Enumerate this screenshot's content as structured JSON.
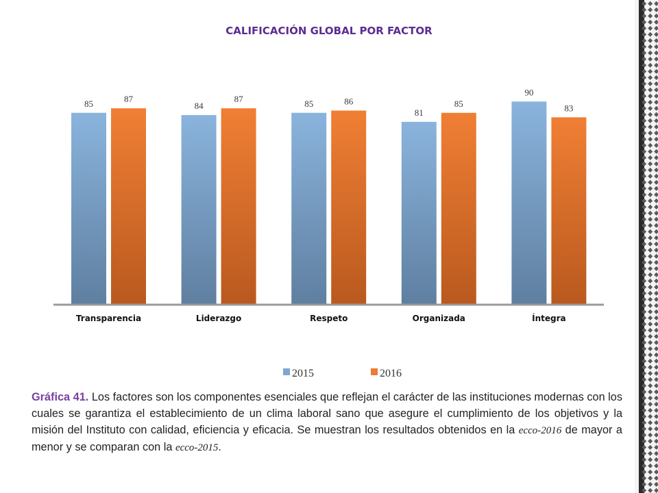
{
  "chart_data": {
    "type": "bar",
    "title": "CALIFICACIÓN GLOBAL POR FACTOR",
    "categories": [
      "Transparencia",
      "Liderazgo",
      "Respeto",
      "Organizada",
      "Íntegra"
    ],
    "series": [
      {
        "name": "2015",
        "values": [
          85,
          84,
          85,
          81,
          90
        ],
        "color": "#7ea8d3"
      },
      {
        "name": "2016",
        "values": [
          87,
          87,
          86,
          85,
          83
        ],
        "color": "#ed7a32"
      }
    ],
    "xlabel": "",
    "ylabel": "",
    "ylim": [
      0,
      100
    ],
    "grid": false,
    "legend": "bottom"
  },
  "caption": {
    "lead": "Gráfica 41.",
    "part1": " Los factores son los componentes esenciales que reflejan el carácter de las instituciones modernas con los cuales se garantiza el establecimiento de un clima laboral sano que asegure el cumplimiento de los objetivos y la misión del Instituto con calidad, eficiencia y eficacia. Se muestran los resultados obtenidos en la ",
    "term1": "ecco-2016",
    "part2": " de mayor a menor y se comparan con la ",
    "term2": "ecco-2015",
    "part3": "."
  }
}
